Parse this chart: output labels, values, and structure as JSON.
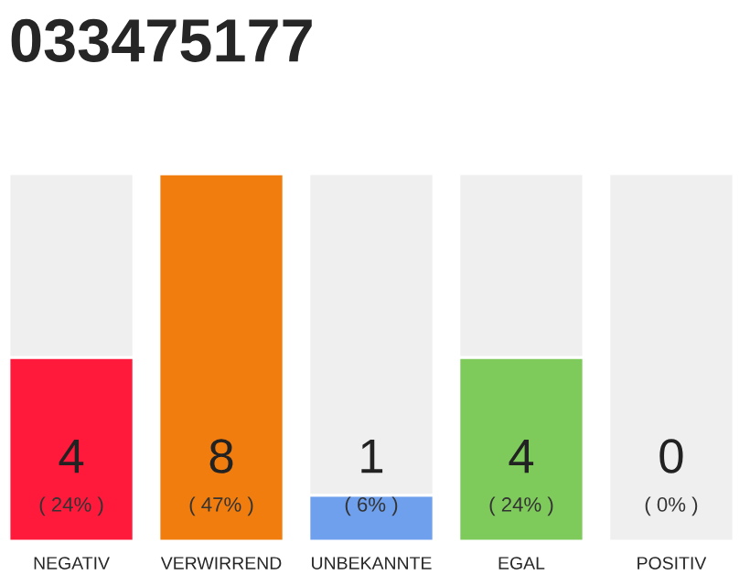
{
  "chart_data": {
    "type": "bar",
    "title": "033475177",
    "stacked": true,
    "categories": [
      "NEGATIV",
      "VERWIRREND",
      "UNBEKANNTE",
      "EGAL",
      "POSITIV"
    ],
    "ylim": [
      0,
      8
    ],
    "tick_labels": "x",
    "series": [
      {
        "colors": [
          "#ff1a3c",
          "#f07d0e",
          "#6fa0ee",
          "#7ecb5c",
          "#efefef"
        ],
        "values": [
          4,
          8,
          1,
          4,
          0
        ],
        "value_labels": [
          "4\n( 24% )",
          "8\n( 47% )",
          "1\n( 6% )",
          "4\n( 24% )",
          "0\n( 0% )"
        ]
      },
      {
        "color": "#efefef",
        "values": [
          4,
          0,
          7,
          4,
          8
        ]
      }
    ]
  }
}
